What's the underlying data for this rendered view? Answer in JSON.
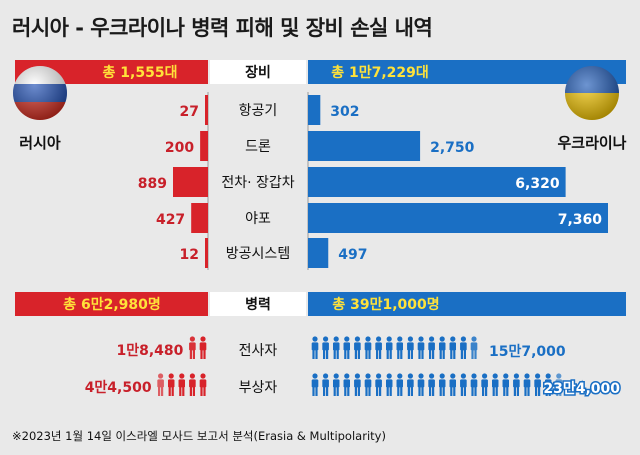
{
  "title": "러시아 - 우크라이나 병력 피해 및 장비 손실 내역",
  "footnote": "※2023년 1월 14일 이스라엘 모사드 보고서 분석(Erasia & Multipolarity)",
  "colors": {
    "russia": "#d8232a",
    "ukraine": "#1a6fc4",
    "total_text": "#ffe23a",
    "label_russia": "#c8202a",
    "label_ukraine": "#1a6fc4",
    "background": "#e9e9e9"
  },
  "equipment": {
    "section_label": "장비",
    "russia_total": "총 1,555대",
    "ukraine_total": "총 1만7,229대"
  },
  "troops": {
    "section_label": "병력",
    "russia_total": "총 6만2,980명",
    "ukraine_total": "총 39만1,000명"
  },
  "countries": {
    "russia": "러시아",
    "ukraine": "우크라이나"
  },
  "chart_data": [
    {
      "type": "bar",
      "categories": [
        "항공기",
        "드론",
        "전차· 장갑차",
        "야포",
        "방공시스템"
      ],
      "series": [
        {
          "name": "러시아",
          "values": [
            27,
            200,
            889,
            427,
            12
          ],
          "labels": [
            "27",
            "200",
            "889",
            "427",
            "12"
          ]
        },
        {
          "name": "우크라이나",
          "values": [
            302,
            2750,
            6320,
            7360,
            497
          ],
          "labels": [
            "302",
            "2,750",
            "6,320",
            "7,360",
            "497"
          ]
        }
      ]
    },
    {
      "type": "bar",
      "categories": [
        "전사자",
        "부상자"
      ],
      "series": [
        {
          "name": "러시아",
          "values": [
            18480,
            44500
          ],
          "labels": [
            "1만8,480",
            "4만4,500"
          ]
        },
        {
          "name": "우크라이나",
          "values": [
            157000,
            234000
          ],
          "labels": [
            "15만7,000",
            "23만4,000"
          ]
        }
      ]
    }
  ]
}
